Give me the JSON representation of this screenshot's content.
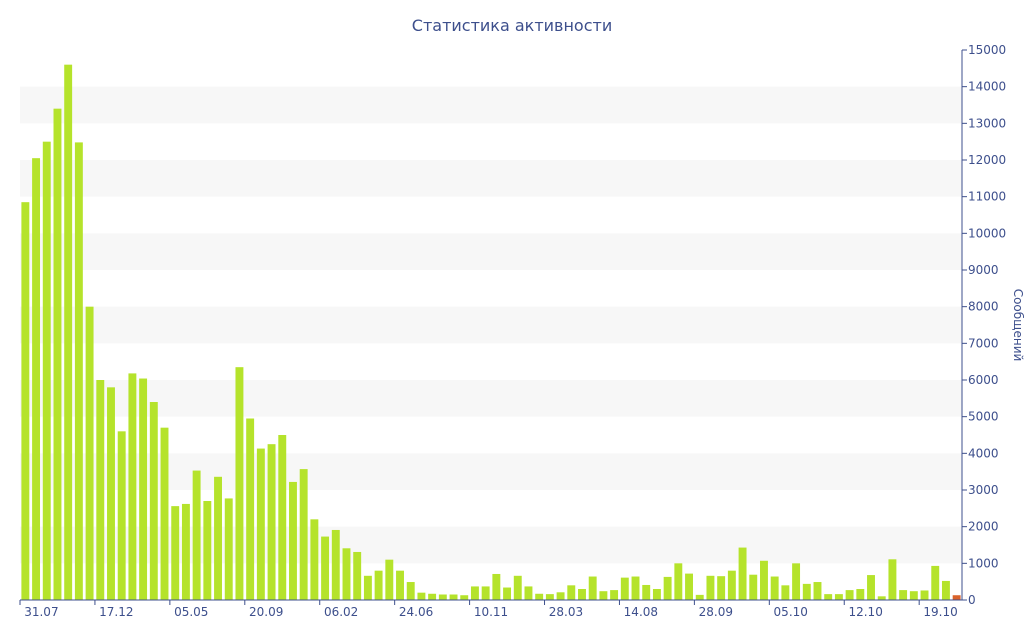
{
  "chart_data": {
    "type": "bar",
    "title": "Статистика активности",
    "ylabel": "Сообщений",
    "ylim": [
      0,
      15000
    ],
    "yticks": [
      0,
      1000,
      2000,
      3000,
      4000,
      5000,
      6000,
      7000,
      8000,
      9000,
      10000,
      11000,
      12000,
      13000,
      14000,
      15000
    ],
    "xticks": [
      {
        "index": 0,
        "label": "31.07"
      },
      {
        "index": 7,
        "label": "17.12"
      },
      {
        "index": 14,
        "label": "05.05"
      },
      {
        "index": 21,
        "label": "20.09"
      },
      {
        "index": 28,
        "label": "06.02"
      },
      {
        "index": 35,
        "label": "24.06"
      },
      {
        "index": 42,
        "label": "10.11"
      },
      {
        "index": 49,
        "label": "28.03"
      },
      {
        "index": 56,
        "label": "14.08"
      },
      {
        "index": 63,
        "label": "28.09"
      },
      {
        "index": 70,
        "label": "05.10"
      },
      {
        "index": 77,
        "label": "12.10"
      },
      {
        "index": 84,
        "label": "19.10"
      }
    ],
    "grid": "horizontal alternating bands",
    "series": [
      {
        "color": "#b5e32b",
        "values": [
          10850,
          12050,
          12500,
          13400,
          14600,
          12480,
          8000,
          6000,
          5800,
          4600,
          6180,
          6040,
          5400,
          4700,
          2560,
          2620,
          3530,
          2700,
          3360,
          2770,
          6350,
          4950,
          4130,
          4250,
          4500,
          3220,
          3570,
          2200,
          1730,
          1910,
          1410,
          1310,
          660,
          800,
          1100,
          800,
          490,
          200,
          170,
          150,
          150,
          130,
          370,
          370,
          710,
          340,
          660,
          370,
          170,
          160,
          210,
          400,
          300,
          640,
          240,
          270,
          610,
          640,
          410,
          300,
          630,
          1000,
          720,
          140,
          660,
          650,
          800,
          1430,
          690,
          1070,
          640,
          400,
          1000,
          440,
          490,
          160,
          160,
          270,
          300,
          680,
          100,
          1110,
          270,
          240,
          260,
          930,
          520,
          0
        ]
      },
      {
        "color": "#d9622b",
        "values": [
          0,
          0,
          0,
          0,
          0,
          0,
          0,
          0,
          0,
          0,
          0,
          0,
          0,
          0,
          0,
          0,
          0,
          0,
          0,
          0,
          0,
          0,
          0,
          0,
          0,
          0,
          0,
          0,
          0,
          0,
          0,
          0,
          0,
          0,
          0,
          0,
          0,
          0,
          0,
          0,
          0,
          0,
          0,
          0,
          0,
          0,
          0,
          0,
          0,
          0,
          0,
          0,
          0,
          0,
          0,
          0,
          0,
          0,
          0,
          0,
          0,
          0,
          0,
          0,
          0,
          0,
          0,
          0,
          0,
          0,
          0,
          0,
          0,
          0,
          0,
          0,
          0,
          0,
          0,
          0,
          0,
          0,
          0,
          0,
          0,
          0,
          0,
          130
        ]
      }
    ]
  }
}
